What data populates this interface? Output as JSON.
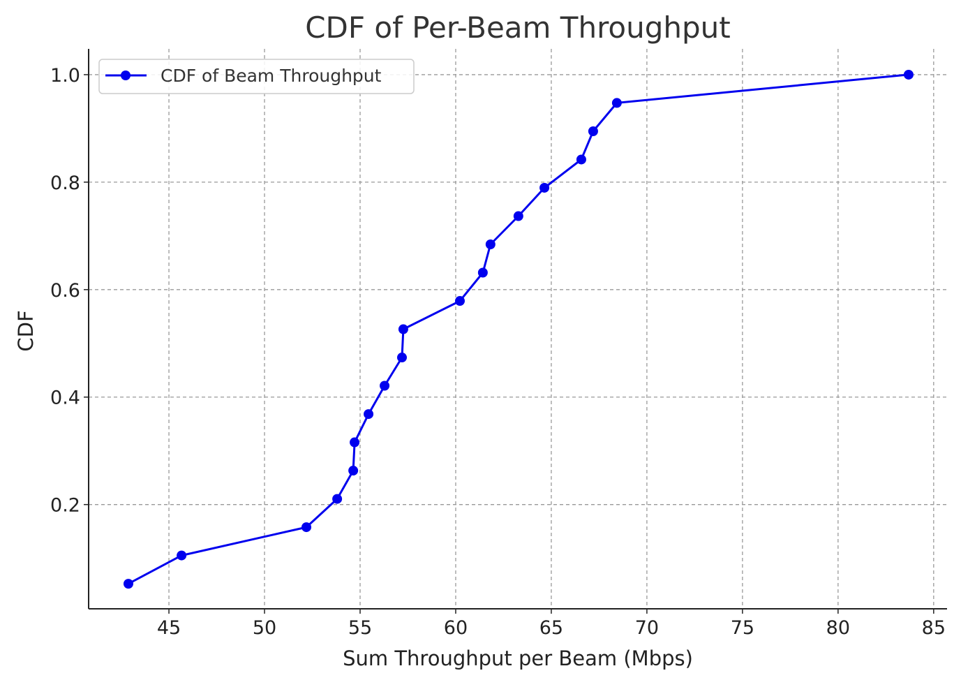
{
  "chart_data": {
    "type": "line",
    "title": "CDF of Per-Beam Throughput",
    "xlabel": "Sum Throughput per Beam (Mbps)",
    "ylabel": "CDF",
    "xlim": [
      40.8,
      85.7
    ],
    "ylim": [
      0.006,
      1.048
    ],
    "xticks": [
      45,
      50,
      55,
      60,
      65,
      70,
      75,
      80,
      85
    ],
    "yticks": [
      0.2,
      0.4,
      0.6,
      0.8,
      1.0
    ],
    "xtick_labels": [
      "45",
      "50",
      "55",
      "60",
      "65",
      "70",
      "75",
      "80",
      "85"
    ],
    "ytick_labels": [
      "0.2",
      "0.4",
      "0.6",
      "0.8",
      "1.0"
    ],
    "grid": true,
    "legend_position": "top-left",
    "series": [
      {
        "name": "CDF of Beam Throughput",
        "color": "#0000ee",
        "marker": "circle",
        "x": [
          42.88,
          45.66,
          52.19,
          53.8,
          54.64,
          54.71,
          55.44,
          56.28,
          57.19,
          57.26,
          60.22,
          61.42,
          61.82,
          63.28,
          64.64,
          66.57,
          67.19,
          68.43,
          83.69
        ],
        "y": [
          0.0526,
          0.1053,
          0.1579,
          0.2105,
          0.2632,
          0.3158,
          0.3684,
          0.4211,
          0.4737,
          0.5263,
          0.5789,
          0.6316,
          0.6842,
          0.7368,
          0.7895,
          0.8421,
          0.8947,
          0.9474,
          1.0
        ]
      }
    ]
  }
}
